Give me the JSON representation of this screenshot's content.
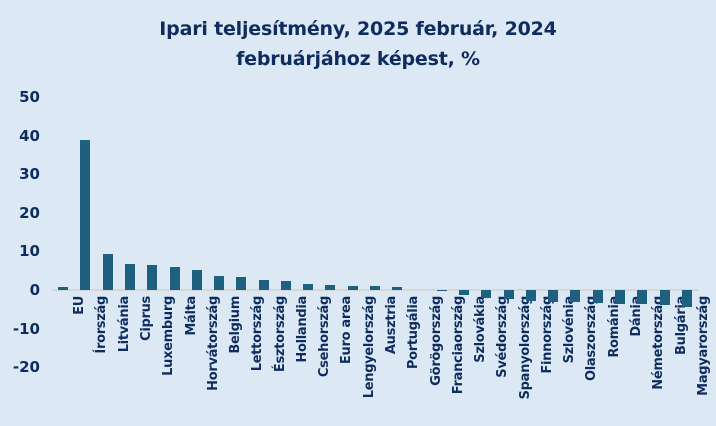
{
  "page": {
    "background": "#dce9f5"
  },
  "chart_data": {
    "type": "bar",
    "title": "Ipari teljesítmény, 2025 február, 2024 februárjához képest, %",
    "title_line1": "Ipari teljesítmény, 2025 február, 2024",
    "title_line2": "februárjához képest, %",
    "xlabel": "",
    "ylabel": "",
    "yticks": [
      50,
      40,
      30,
      20,
      10,
      0,
      -10,
      -20
    ],
    "ylim": [
      -22,
      52
    ],
    "grid": false,
    "legend": false,
    "bar_color": "#1d6080",
    "text_color": "#0e2c5e",
    "axis_line_color": "#d6d6d6",
    "categories": [
      "EU",
      "Írország",
      "Litvánia",
      "Ciprus",
      "Luxemburg",
      "Málta",
      "Horvátország",
      "Belgium",
      "Lettország",
      "Észtország",
      "Hollandia",
      "Csehország",
      "Euro area",
      "Lengyelország",
      "Ausztria",
      "Portugália",
      "Görögország",
      "Franciaország",
      "Szlovákia",
      "Svédország",
      "Spanyolország",
      "Finnország",
      "Szlovénia",
      "Olaszország",
      "Románia",
      "Dánia",
      "Németország",
      "Bulgária",
      "Magyarország"
    ],
    "values": [
      0.8,
      38.8,
      9.2,
      6.7,
      6.5,
      6.0,
      5.3,
      3.6,
      3.4,
      2.6,
      2.3,
      1.5,
      1.2,
      1.1,
      1.0,
      0.8,
      0.0,
      -0.1,
      -1.3,
      -2.0,
      -2.3,
      -2.8,
      -3.0,
      -3.2,
      -3.4,
      -3.5,
      -3.7,
      -3.9,
      -4.5
    ]
  }
}
